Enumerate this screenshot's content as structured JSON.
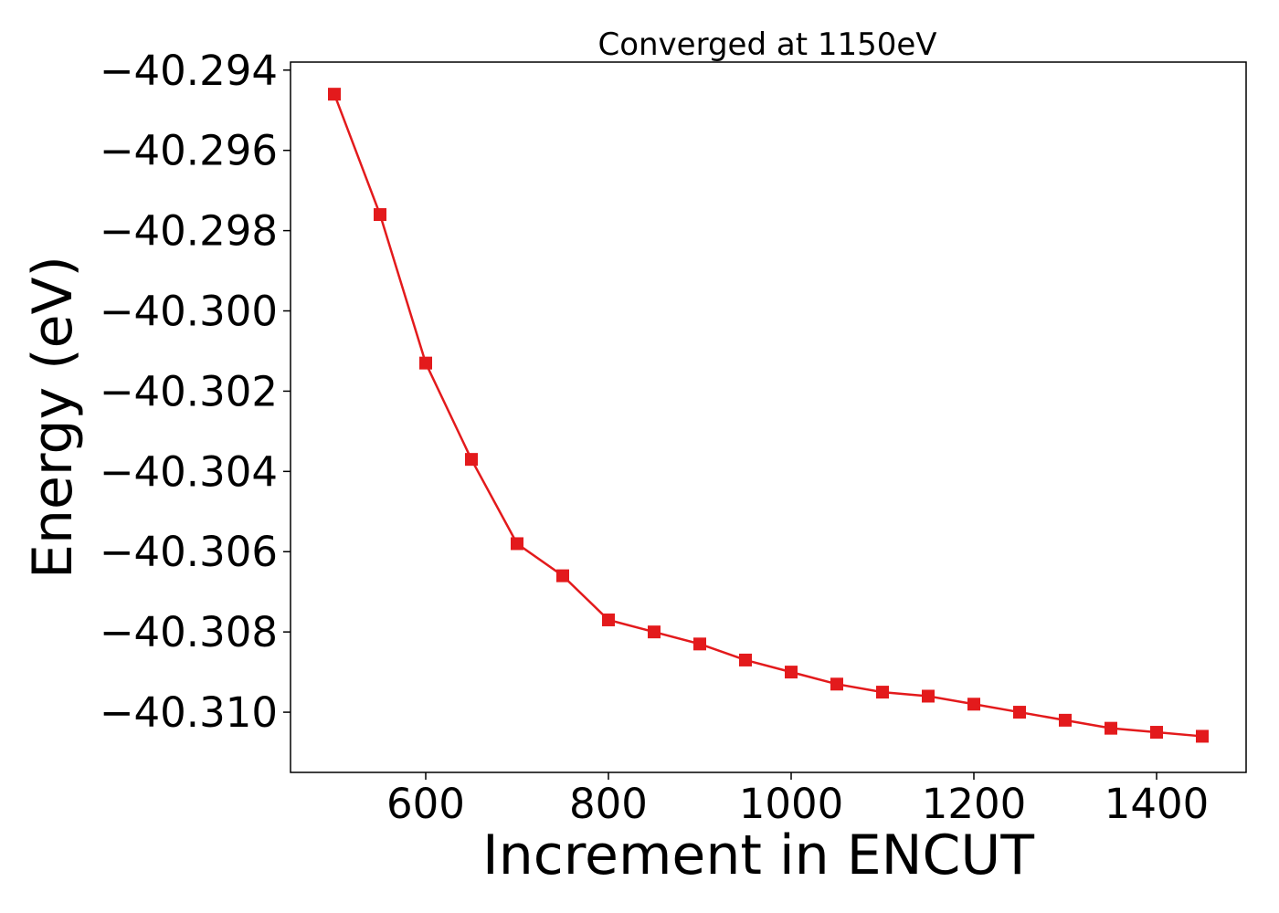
{
  "chart_data": {
    "type": "line",
    "title": "Converged at 1150eV",
    "xlabel": "Increment in ENCUT",
    "ylabel": "Energy (eV)",
    "xlim": [
      452,
      1498
    ],
    "ylim": [
      -40.3115,
      -40.2938
    ],
    "x_ticks": [
      600,
      800,
      1000,
      1200,
      1400
    ],
    "x_tick_labels": [
      "600",
      "800",
      "1000",
      "1200",
      "1400"
    ],
    "y_ticks": [
      -40.294,
      -40.296,
      -40.298,
      -40.3,
      -40.302,
      -40.304,
      -40.306,
      -40.308,
      -40.31
    ],
    "y_tick_labels": [
      "−40.294",
      "−40.296",
      "−40.298",
      "−40.300",
      "−40.302",
      "−40.304",
      "−40.306",
      "−40.308",
      "−40.310"
    ],
    "grid": false,
    "series": [
      {
        "color": "#e31a1c",
        "marker": "square",
        "x": [
          500,
          550,
          600,
          650,
          700,
          750,
          800,
          850,
          900,
          950,
          1000,
          1050,
          1100,
          1150,
          1200,
          1250,
          1300,
          1350,
          1400,
          1450
        ],
        "y": [
          -40.2946,
          -40.2976,
          -40.3013,
          -40.3037,
          -40.3058,
          -40.3066,
          -40.3077,
          -40.308,
          -40.3083,
          -40.3087,
          -40.309,
          -40.3093,
          -40.3095,
          -40.3096,
          -40.3098,
          -40.31,
          -40.3102,
          -40.3104,
          -40.3105,
          -40.3106
        ]
      }
    ]
  }
}
